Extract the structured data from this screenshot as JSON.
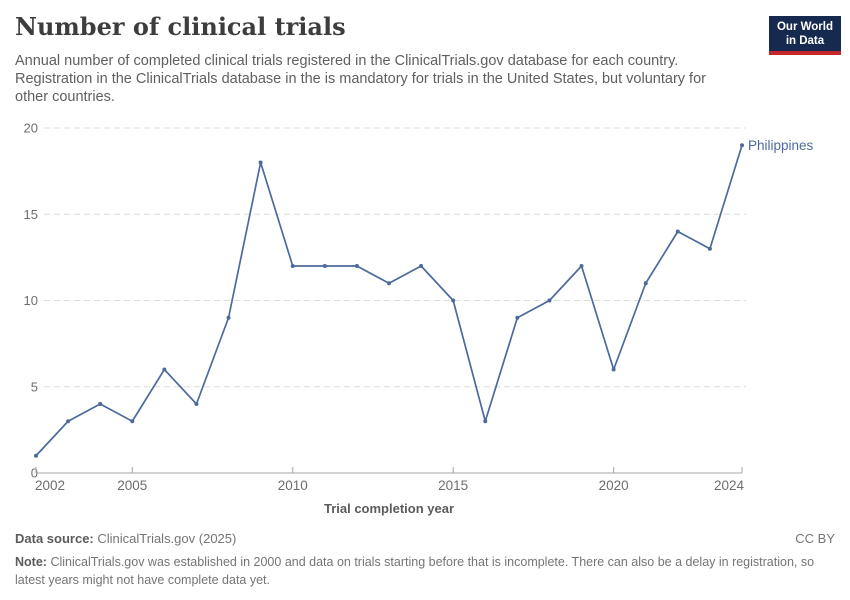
{
  "header": {
    "title": "Number of clinical trials",
    "subtitle": "Annual number of completed clinical trials registered in the ClinicalTrials.gov database for each country. Registration in the ClinicalTrials database in the is mandatory for trials in the United States, but voluntary for other countries."
  },
  "logo": {
    "line1": "Our World",
    "line2": "in Data",
    "bg_color": "#152a4e",
    "accent_color": "#c5262c"
  },
  "chart_data": {
    "type": "line",
    "title": "Number of clinical trials",
    "xlabel": "Trial completion year",
    "ylabel": "",
    "x": [
      2002,
      2003,
      2004,
      2005,
      2006,
      2007,
      2008,
      2009,
      2010,
      2011,
      2012,
      2013,
      2014,
      2015,
      2016,
      2017,
      2018,
      2019,
      2020,
      2021,
      2022,
      2023,
      2024
    ],
    "series": [
      {
        "name": "Philippines",
        "color": "#4c6a9c",
        "values": [
          1,
          3,
          4,
          3,
          6,
          4,
          9,
          18,
          12,
          12,
          12,
          11,
          12,
          10,
          3,
          9,
          10,
          12,
          6,
          11,
          14,
          13,
          19
        ]
      }
    ],
    "ylim": [
      0,
      20
    ],
    "yticks": [
      0,
      5,
      10,
      15,
      20
    ],
    "xticks": [
      2002,
      2005,
      2010,
      2015,
      2020,
      2024
    ],
    "grid": "horizontal-dashed",
    "legend_position": "end-of-line-label",
    "colors": {
      "gridline": "#dcdcdc",
      "axis": "#a6a6a6",
      "tick_label": "#6e6e6e",
      "axis_title": "#5b5b5b"
    }
  },
  "footer": {
    "source_label": "Data source:",
    "source_value": "ClinicalTrials.gov (2025)",
    "license": "CC BY",
    "note_label": "Note:",
    "note_text": "ClinicalTrials.gov was established in 2000 and data on trials starting before that is incomplete. There can also be a delay in registration, so latest years might not have complete data yet."
  }
}
